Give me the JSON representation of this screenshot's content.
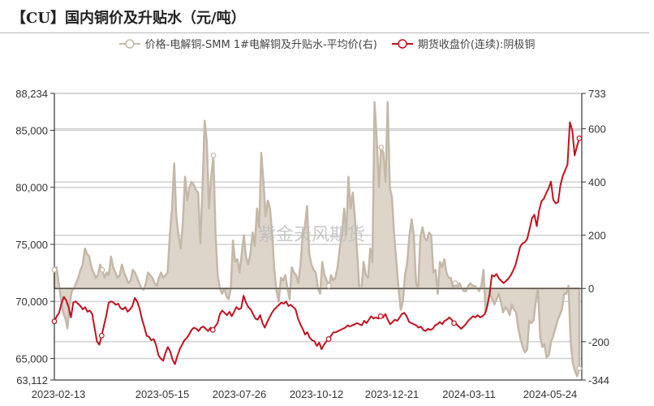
{
  "title": "【CU】国内铜价及升贴水（元/吨）",
  "watermark": "紫金天风期货",
  "legend": [
    {
      "label": "价格-电解铜-SMM 1#电解铜及升贴水-平均价(右)",
      "color": "#c4b8a8"
    },
    {
      "label": "期货收盘价(连续):阴极铜",
      "color": "#c0121f"
    }
  ],
  "colors": {
    "premium_line": "#c4b8a8",
    "premium_fill": "#ddd5ca",
    "futures_line": "#c0121f",
    "grid": "#d0d0d0",
    "axis": "#333333"
  },
  "chart_data": {
    "type": "line",
    "title": "【CU】国内铜价及升贴水（元/吨）",
    "x_ticks": [
      "2023-02-13",
      "2023-05-15",
      "2023-07-26",
      "2023-10-12",
      "2023-12-21",
      "2024-03-11",
      "2024-05-24"
    ],
    "left_axis": {
      "ticks": [
        "63,112",
        "65,000",
        "70,000",
        "75,000",
        "80,000",
        "85,000",
        "88,234"
      ],
      "ylim": [
        63112,
        88234
      ]
    },
    "right_axis": {
      "ticks": [
        "-344",
        "-200",
        "0",
        "200",
        "400",
        "600",
        "733"
      ],
      "ylim": [
        -344,
        733
      ]
    },
    "series": [
      {
        "name": "价格-电解铜-SMM 1#电解铜及升贴水-平均价(右)",
        "axis": "right",
        "type": "area",
        "values": [
          70,
          80,
          20,
          -40,
          -90,
          -110,
          -150,
          -60,
          -10,
          0,
          20,
          40,
          70,
          90,
          150,
          130,
          120,
          80,
          60,
          40,
          50,
          90,
          70,
          40,
          60,
          50,
          120,
          80,
          60,
          40,
          50,
          90,
          60,
          40,
          20,
          30,
          70,
          60,
          40,
          20,
          0,
          -5,
          20,
          60,
          50,
          40,
          20,
          10,
          40,
          60,
          40,
          50,
          60,
          200,
          300,
          470,
          270,
          200,
          150,
          250,
          420,
          330,
          380,
          400,
          390,
          370,
          360,
          170,
          380,
          630,
          550,
          300,
          420,
          500,
          200,
          50,
          0,
          -20,
          0,
          -30,
          -40,
          0,
          180,
          100,
          110,
          60,
          130,
          200,
          120,
          90,
          130,
          210,
          160,
          300,
          230,
          510,
          400,
          270,
          330,
          300,
          200,
          70,
          -10,
          -50,
          40,
          30,
          50,
          0,
          -40,
          80,
          60,
          50,
          20,
          90,
          200,
          230,
          310,
          130,
          90,
          70,
          60,
          0,
          -20,
          100,
          50,
          30,
          10,
          50,
          30,
          40,
          80,
          150,
          200,
          300,
          200,
          420,
          300,
          360,
          260,
          130,
          0,
          0,
          100,
          50,
          40,
          150,
          100,
          700,
          560,
          380,
          530,
          510,
          400,
          700,
          380,
          340,
          200,
          100,
          0,
          -80,
          -50,
          50,
          100,
          200,
          260,
          200,
          20,
          0,
          190,
          230,
          190,
          180,
          210,
          200,
          60,
          70,
          -20,
          100,
          80,
          110,
          60,
          40,
          40,
          0,
          20,
          0,
          20,
          0,
          -10,
          -10,
          10,
          20,
          10,
          10,
          0,
          -10,
          10,
          70,
          -90,
          -50,
          -20,
          -40,
          -60,
          -40,
          -20,
          -50,
          -90,
          -70,
          -80,
          -100,
          -60,
          -80,
          -90,
          -150,
          -190,
          -220,
          -240,
          -230,
          -120,
          -130,
          -120,
          -50,
          0,
          -180,
          -220,
          -210,
          -260,
          -250,
          -200,
          -180,
          -150,
          -120,
          -100,
          -80,
          -20,
          -20,
          10,
          -200,
          -280,
          -310,
          -330,
          -300
        ]
      },
      {
        "name": "期货收盘价(连续):阴极铜",
        "axis": "left",
        "type": "line",
        "values": [
          68250,
          68700,
          69000,
          69800,
          70400,
          70100,
          69500,
          68600,
          69900,
          70000,
          69800,
          69600,
          69300,
          69500,
          69100,
          69200,
          68900,
          67700,
          66500,
          66200,
          67000,
          67900,
          68800,
          69900,
          70000,
          69900,
          69700,
          69800,
          69400,
          69300,
          69500,
          69100,
          69300,
          69600,
          70300,
          70000,
          69400,
          68500,
          67800,
          67000,
          66900,
          66600,
          66700,
          66200,
          65300,
          65000,
          64800,
          65500,
          66000,
          65600,
          64900,
          64500,
          65200,
          65800,
          66200,
          66600,
          66800,
          67100,
          67500,
          67700,
          67600,
          67400,
          67700,
          67800,
          67600,
          67400,
          67700,
          67500,
          67800,
          68100,
          68900,
          69200,
          69000,
          68800,
          69100,
          68700,
          69100,
          69500,
          69300,
          69400,
          70500,
          69900,
          69500,
          69300,
          68900,
          68500,
          68400,
          68800,
          68100,
          67700,
          68200,
          68600,
          69000,
          69300,
          69500,
          69700,
          69900,
          69800,
          70000,
          69600,
          69700,
          69500,
          69300,
          68500,
          68000,
          67600,
          67100,
          67300,
          66800,
          66600,
          66500,
          66100,
          66400,
          65800,
          66200,
          66500,
          66700,
          67000,
          67300,
          67300,
          67400,
          67500,
          67600,
          67700,
          67900,
          67800,
          67900,
          68000,
          68100,
          68000,
          67900,
          68300,
          68100,
          68400,
          68700,
          68500,
          68600,
          68500,
          68700,
          68600,
          68900,
          68400,
          68000,
          68200,
          68400,
          68300,
          68600,
          68900,
          69000,
          68700,
          68200,
          68100,
          68000,
          67900,
          67700,
          67800,
          67500,
          67400,
          67600,
          67500,
          67600,
          67900,
          68000,
          68200,
          68000,
          68300,
          68400,
          68600,
          68400,
          68100,
          68000,
          67800,
          67600,
          67800,
          68000,
          68300,
          68500,
          68700,
          68600,
          68800,
          68600,
          68700,
          68900,
          69500,
          70600,
          72300,
          72200,
          72400,
          72000,
          71800,
          71600,
          71800,
          72000,
          72300,
          72700,
          73200,
          74000,
          74800,
          75100,
          75200,
          75500,
          76400,
          77300,
          77600,
          76600,
          78000,
          78800,
          79000,
          79500,
          79900,
          80500,
          78900,
          78600,
          78700,
          80200,
          81000,
          81500,
          82000,
          85700,
          85000,
          82800,
          83600,
          84300
        ]
      }
    ]
  }
}
